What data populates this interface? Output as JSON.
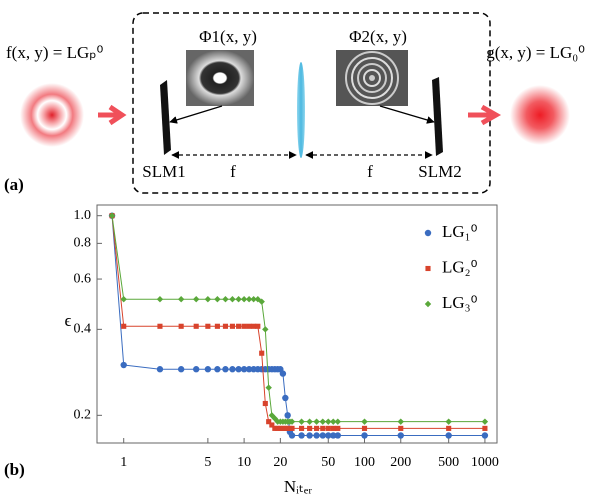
{
  "figure": {
    "panel_a": {
      "label": "(a)",
      "input": "f(x, y) = LGₚ⁰",
      "output": "g(x, y) = LG₀⁰",
      "phase1": "Φ1(x, y)",
      "phase2": "Φ2(x, y)",
      "slm1": "SLM1",
      "slm2": "SLM2",
      "focal1": "f",
      "focal2": "f"
    },
    "panel_b": {
      "label": "(b)"
    }
  },
  "chart_data": {
    "type": "line",
    "x_label": "Nᵢₜₑᵣ",
    "y_label": "ϵ",
    "log_x": true,
    "log_y": true,
    "legend": "upper right",
    "x": [
      0.8,
      1,
      2,
      3,
      4,
      5,
      6,
      7,
      8,
      9,
      10,
      11,
      12,
      13,
      14,
      15,
      16,
      17,
      18,
      19,
      20,
      21,
      22,
      23,
      24,
      25,
      30,
      35,
      40,
      45,
      50,
      55,
      60,
      100,
      200,
      500,
      1000
    ],
    "series": [
      {
        "name": "LG₁⁰",
        "color": "#3a6cc0",
        "marker": "circle",
        "values": [
          1.0,
          0.3,
          0.29,
          0.29,
          0.29,
          0.29,
          0.29,
          0.29,
          0.29,
          0.29,
          0.29,
          0.29,
          0.29,
          0.29,
          0.29,
          0.29,
          0.29,
          0.29,
          0.29,
          0.29,
          0.29,
          0.28,
          0.23,
          0.2,
          0.175,
          0.17,
          0.17,
          0.17,
          0.17,
          0.17,
          0.17,
          0.17,
          0.17,
          0.17,
          0.17,
          0.17,
          0.17
        ]
      },
      {
        "name": "LG₂⁰",
        "color": "#d8432c",
        "marker": "square",
        "values": [
          1.0,
          0.41,
          0.41,
          0.41,
          0.41,
          0.41,
          0.41,
          0.41,
          0.41,
          0.41,
          0.41,
          0.41,
          0.41,
          0.41,
          0.33,
          0.22,
          0.19,
          0.185,
          0.18,
          0.18,
          0.18,
          0.18,
          0.18,
          0.18,
          0.18,
          0.18,
          0.18,
          0.18,
          0.18,
          0.18,
          0.18,
          0.18,
          0.18,
          0.18,
          0.18,
          0.18,
          0.18
        ]
      },
      {
        "name": "LG₃⁰",
        "color": "#5aa83a",
        "marker": "diamond",
        "values": [
          1.0,
          0.51,
          0.51,
          0.51,
          0.51,
          0.51,
          0.51,
          0.51,
          0.51,
          0.51,
          0.51,
          0.51,
          0.51,
          0.51,
          0.5,
          0.4,
          0.25,
          0.2,
          0.195,
          0.19,
          0.19,
          0.19,
          0.19,
          0.19,
          0.19,
          0.19,
          0.19,
          0.19,
          0.19,
          0.19,
          0.19,
          0.19,
          0.19,
          0.19,
          0.19,
          0.19,
          0.19
        ]
      }
    ],
    "xlim": [
      0.6,
      1260
    ],
    "ylim": [
      0.16,
      1.09
    ],
    "xticks": [
      1,
      5,
      10,
      20,
      50,
      100,
      200,
      500,
      1000
    ],
    "yticks": [
      0.2,
      0.4,
      0.6,
      0.8,
      {
        "value": 1,
        "label": "1.0"
      }
    ]
  }
}
